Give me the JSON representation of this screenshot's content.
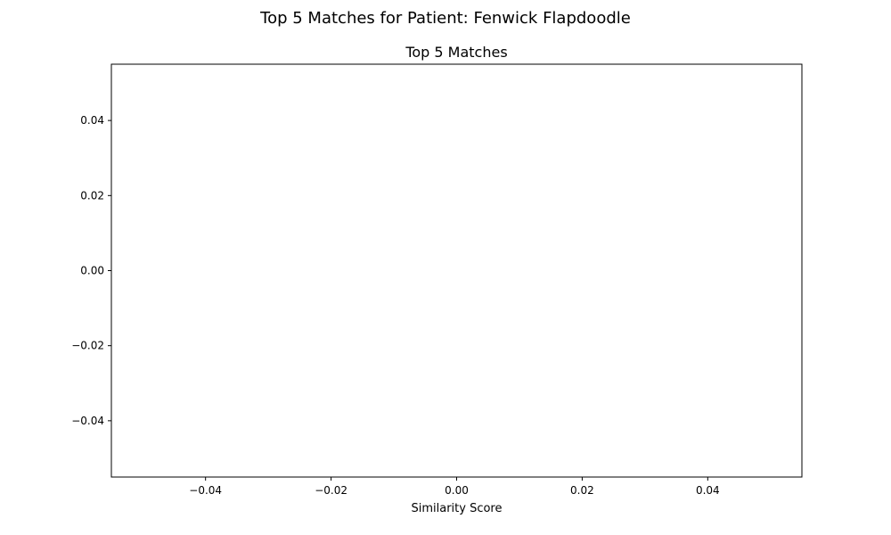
{
  "suptitle": "Top 5 Matches for Patient: Fenwick Flapdoodle",
  "chart_data": {
    "type": "bar",
    "orientation": "horizontal",
    "title": "Top 5 Matches",
    "xlabel": "Similarity Score",
    "ylabel": "",
    "categories": [],
    "values": [],
    "xlim": [
      -0.055,
      0.055
    ],
    "ylim": [
      -0.055,
      0.055
    ],
    "xticks": [
      -0.04,
      -0.02,
      0.0,
      0.02,
      0.04
    ],
    "xtick_labels": [
      "−0.04",
      "−0.02",
      "0.00",
      "0.02",
      "0.04"
    ],
    "yticks": [
      0.04,
      0.02,
      0.0,
      -0.02,
      -0.04
    ],
    "ytick_labels": [
      "0.04",
      "0.02",
      "0.00",
      "−0.02",
      "−0.04"
    ],
    "grid": false,
    "legend": "none"
  }
}
